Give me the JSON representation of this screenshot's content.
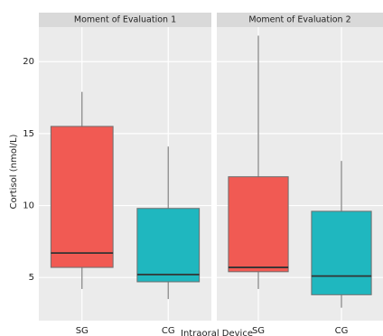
{
  "chart_data": {
    "type": "box",
    "ylabel": "Cortisol (nmol/L)",
    "xlabel": "Intraoral Device",
    "ylim": [
      2,
      22.4
    ],
    "yticks": [
      5,
      10,
      15,
      20
    ],
    "grid": true,
    "colors": [
      "#f15a53",
      "#1fb7bf"
    ],
    "facets": [
      {
        "title": "Moment of Evaluation 1",
        "categories": [
          "SG",
          "CG"
        ],
        "min": [
          4.2,
          3.5
        ],
        "q1": [
          5.7,
          4.7
        ],
        "median": [
          6.7,
          5.2
        ],
        "q3": [
          15.5,
          9.8
        ],
        "max": [
          17.9,
          14.1
        ]
      },
      {
        "title": "Moment of Evaluation 2",
        "categories": [
          "SG",
          "CG"
        ],
        "min": [
          4.2,
          2.9
        ],
        "q1": [
          5.4,
          3.8
        ],
        "median": [
          5.7,
          5.1
        ],
        "q3": [
          12.0,
          9.6
        ],
        "max": [
          21.8,
          13.1
        ]
      }
    ]
  }
}
